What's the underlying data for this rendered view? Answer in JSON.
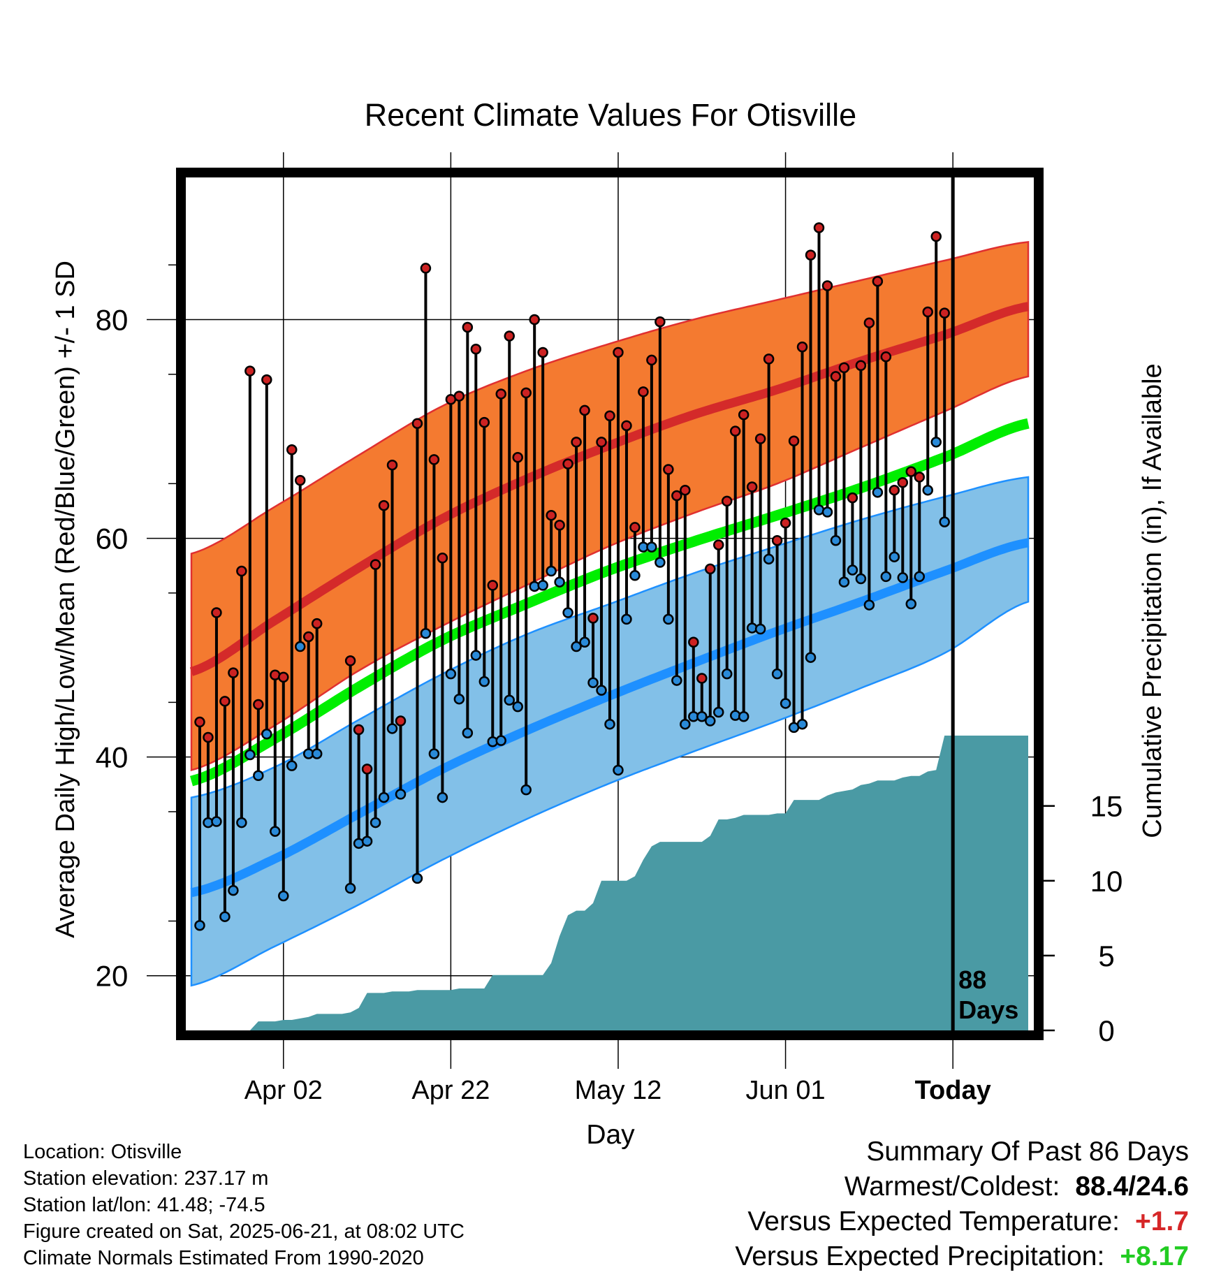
{
  "chart_data": {
    "type": "line",
    "title": "Recent Climate Values For Otisville",
    "xlabel": "Day",
    "ylabel_left": "Average Daily High/Low/Mean (Red/Blue/Green) +/- 1 SD",
    "ylabel_right": "Cumulative Precipitation (in), If Available",
    "x_tick_labels": [
      "Apr 02",
      "Apr 22",
      "May 12",
      "Jun 01",
      "Today"
    ],
    "x_tick_days": [
      10,
      30,
      50,
      70,
      90
    ],
    "xlim": [
      -1,
      99
    ],
    "ylim_left": [
      15,
      93
    ],
    "ylim_right": [
      0,
      57
    ],
    "y_ticks_left": [
      20,
      40,
      60,
      80
    ],
    "y_ticks_right": [
      0,
      5,
      10,
      15
    ],
    "today_day": 90,
    "today_label": [
      "88",
      "Days"
    ],
    "normals": {
      "days": [
        -1,
        9,
        19,
        29,
        39,
        49,
        59,
        69,
        79,
        89,
        99
      ],
      "high_mean": [
        47.8,
        52.5,
        57.3,
        61.8,
        65.4,
        68.5,
        71.3,
        73.6,
        76.2,
        78.6,
        81.2
      ],
      "high_upper": [
        58.6,
        62.9,
        67.6,
        72.1,
        75.3,
        77.8,
        80.0,
        81.8,
        83.6,
        85.4,
        87.1
      ],
      "high_lower": [
        38.8,
        42.9,
        47.9,
        52.0,
        55.7,
        59.3,
        62.3,
        65.0,
        68.3,
        71.6,
        74.8
      ],
      "mean": [
        37.8,
        41.7,
        46.4,
        50.7,
        54.0,
        57.1,
        59.7,
        62.1,
        64.6,
        67.4,
        70.5
      ],
      "low_mean": [
        27.6,
        30.7,
        34.8,
        38.9,
        42.4,
        45.6,
        48.6,
        51.5,
        54.2,
        57.0,
        59.6
      ],
      "low_upper": [
        36.3,
        39.1,
        43.4,
        47.6,
        51.2,
        54.0,
        56.8,
        59.3,
        61.7,
        63.8,
        65.6
      ],
      "low_lower": [
        19.1,
        22.7,
        26.5,
        30.6,
        34.3,
        37.6,
        40.5,
        43.3,
        46.3,
        49.5,
        54.2
      ]
    },
    "daily_high": [
      43.2,
      41.8,
      53.2,
      45.1,
      47.7,
      57.0,
      75.3,
      44.8,
      74.5,
      47.5,
      47.3,
      68.1,
      65.3,
      51.0,
      52.2,
      null,
      null,
      null,
      48.8,
      42.5,
      38.9,
      57.6,
      63.0,
      66.7,
      43.3,
      null,
      70.5,
      84.7,
      67.2,
      58.2,
      72.7,
      73.0,
      79.3,
      77.3,
      70.6,
      55.7,
      73.2,
      78.5,
      67.4,
      73.3,
      80.0,
      77.0,
      62.1,
      61.2,
      66.8,
      68.8,
      71.7,
      52.7,
      68.8,
      71.2,
      77.0,
      70.3,
      61.0,
      73.4,
      76.3,
      79.8,
      66.3,
      63.9,
      64.4,
      50.5,
      47.2,
      57.2,
      59.4,
      63.4,
      69.8,
      71.3,
      64.7,
      69.1,
      76.4,
      59.8,
      61.4,
      68.9,
      77.5,
      85.9,
      88.4,
      83.1,
      74.8,
      75.6,
      63.7,
      75.8,
      79.7,
      83.5,
      76.6,
      64.4,
      65.1,
      66.1,
      65.6,
      80.7,
      87.6,
      80.6
    ],
    "daily_low": [
      24.6,
      34.0,
      34.1,
      25.4,
      27.8,
      34.0,
      40.2,
      38.3,
      42.1,
      33.2,
      27.3,
      39.2,
      50.1,
      40.3,
      40.3,
      null,
      null,
      null,
      28.0,
      32.1,
      32.3,
      34.0,
      36.3,
      42.6,
      36.6,
      null,
      28.9,
      51.3,
      40.3,
      36.3,
      47.6,
      45.3,
      42.2,
      49.3,
      46.9,
      41.4,
      41.5,
      45.2,
      44.6,
      37.0,
      55.6,
      55.7,
      57.0,
      56.0,
      53.2,
      50.1,
      50.5,
      46.8,
      46.1,
      43.0,
      38.8,
      52.6,
      56.6,
      59.2,
      59.2,
      57.8,
      52.6,
      47.0,
      43.0,
      43.7,
      43.7,
      43.3,
      44.1,
      47.6,
      43.8,
      43.7,
      51.8,
      51.7,
      58.1,
      47.6,
      44.9,
      42.7,
      43.0,
      49.1,
      62.6,
      62.4,
      59.8,
      56.0,
      57.1,
      56.3,
      53.9,
      64.2,
      56.5,
      58.3,
      56.4,
      54.0,
      56.5,
      64.4,
      68.8,
      61.5
    ],
    "cumulative_precip": {
      "days": [
        -1,
        6,
        7,
        8,
        9,
        10,
        11,
        13,
        14,
        16,
        17,
        18,
        19,
        20,
        21,
        22,
        23,
        24,
        25,
        26,
        27,
        28,
        29,
        30,
        31,
        32,
        33,
        34,
        35,
        36,
        37,
        38,
        39,
        40,
        41,
        42,
        43,
        44,
        45,
        46,
        47,
        48,
        49,
        50,
        51,
        52,
        53,
        54,
        55,
        56,
        57,
        58,
        59,
        60,
        61,
        62,
        63,
        64,
        65,
        66,
        67,
        68,
        69,
        70,
        71,
        72,
        73,
        74,
        75,
        76,
        77,
        78,
        79,
        80,
        81,
        82,
        83,
        84,
        85,
        86,
        87,
        88,
        89,
        99
      ],
      "values": [
        0.0,
        0.0,
        0.6,
        0.6,
        0.6,
        0.7,
        0.7,
        0.9,
        1.1,
        1.1,
        1.1,
        1.2,
        1.5,
        2.5,
        2.5,
        2.5,
        2.6,
        2.6,
        2.6,
        2.7,
        2.7,
        2.7,
        2.7,
        2.7,
        2.8,
        2.8,
        2.8,
        2.8,
        3.7,
        3.7,
        3.7,
        3.7,
        3.7,
        3.7,
        3.7,
        4.5,
        6.3,
        7.7,
        8.0,
        8.0,
        8.5,
        10.0,
        10.0,
        10.0,
        10.0,
        10.3,
        11.4,
        12.3,
        12.6,
        12.6,
        12.6,
        12.6,
        12.6,
        12.6,
        13.0,
        14.1,
        14.1,
        14.2,
        14.4,
        14.4,
        14.4,
        14.4,
        14.5,
        14.5,
        15.4,
        15.4,
        15.4,
        15.4,
        15.7,
        15.9,
        16.0,
        16.1,
        16.4,
        16.5,
        16.7,
        16.7,
        16.7,
        16.9,
        17.0,
        17.0,
        17.3,
        17.4,
        19.7,
        19.7
      ]
    },
    "colors": {
      "high_band": "#f47a30",
      "high_line": "#d42a2a",
      "high_edge": "#e03030",
      "low_band": "#82c0e8",
      "low_line": "#1e90ff",
      "mean_line": "#00ee00",
      "precip_fill": "#4a9aa4",
      "high_marker": "#cc2222",
      "low_marker": "#2a8ad8"
    }
  },
  "station_info": [
    "Location: Otisville",
    "Station elevation: 237.17 m",
    "Station lat/lon: 41.48; -74.5",
    "Figure created on Sat, 2025-06-21, at 08:02 UTC",
    "Climate Normals Estimated From 1990-2020"
  ],
  "summary": {
    "title": "Summary Of Past 86 Days",
    "warmest_coldest_label": "Warmest/Coldest:",
    "warmest_coldest_value": "88.4/24.6",
    "temp_label": "Versus Expected Temperature:",
    "temp_value": "+1.7",
    "precip_label": "Versus Expected Precipitation:",
    "precip_value": "+8.17"
  }
}
